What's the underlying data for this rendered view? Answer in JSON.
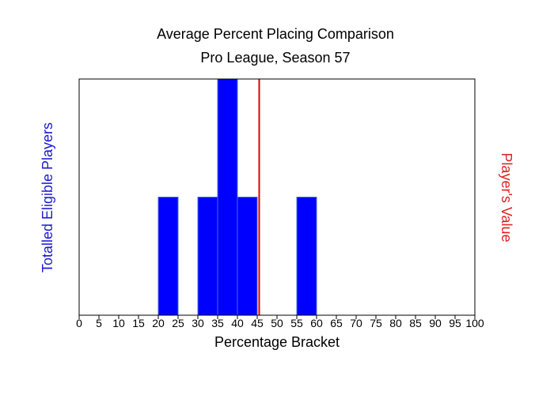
{
  "chart_data": {
    "type": "bar",
    "title": "Average Percent Placing Comparison",
    "subtitle": "Pro League, Season 57",
    "xlabel": "Percentage Bracket",
    "ylabel": "Totalled Eligible Players",
    "y2label": "Player's Value",
    "xlim": [
      0,
      100
    ],
    "ylim": [
      0,
      2
    ],
    "xticks": [
      "0",
      "5",
      "10",
      "15",
      "20",
      "25",
      "30",
      "35",
      "40",
      "45",
      "50",
      "55",
      "60",
      "65",
      "70",
      "75",
      "80",
      "85",
      "90",
      "95",
      "100"
    ],
    "bin_width": 5,
    "bins": [
      {
        "start": 20,
        "count": 1
      },
      {
        "start": 30,
        "count": 1
      },
      {
        "start": 35,
        "count": 2
      },
      {
        "start": 40,
        "count": 1
      },
      {
        "start": 55,
        "count": 1
      }
    ],
    "player_value": 45.5,
    "grid": false,
    "colors": {
      "bar": "#0000ff",
      "bar_edge": "#4a6fd8",
      "player_line": "#dd0000",
      "ylabel": "#1a1ad0",
      "y2label": "#dd2222",
      "text": "#000000"
    }
  }
}
